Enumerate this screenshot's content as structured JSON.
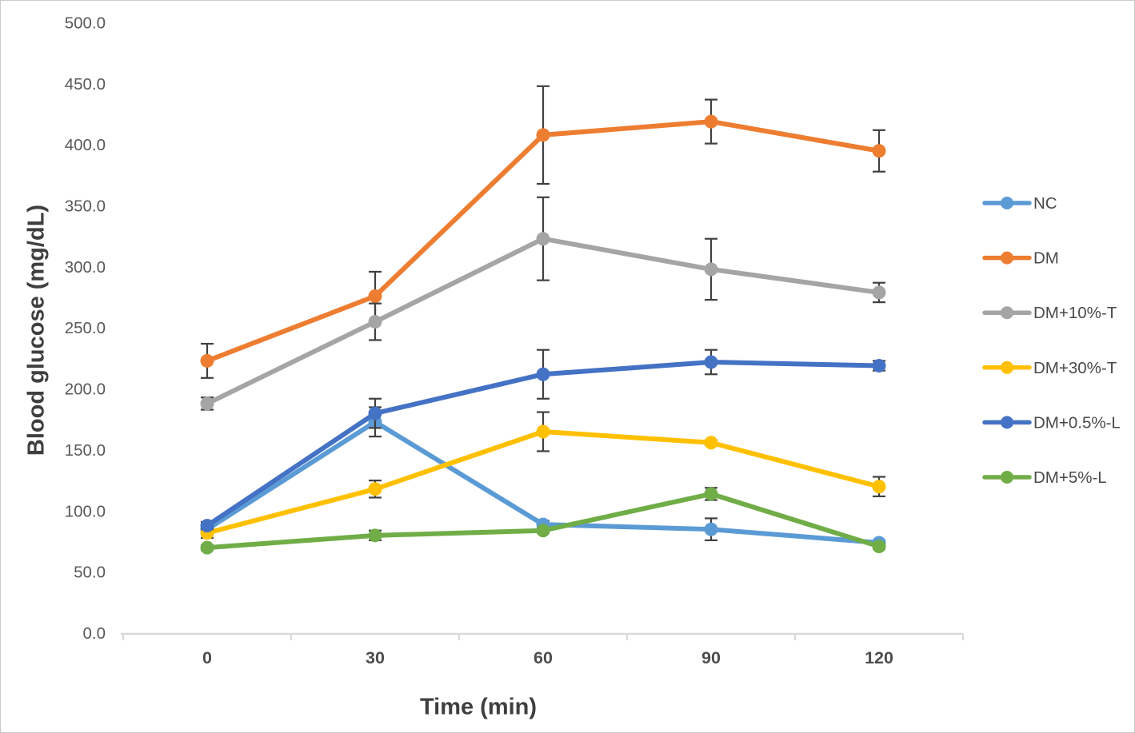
{
  "figure": {
    "background": "#ffffff",
    "border_color": "#cbcbcb"
  },
  "chart_data": {
    "type": "line",
    "title": "",
    "xlabel": "Time (min)",
    "ylabel": "Blood glucose (mg/dL)",
    "x_categories": [
      "0",
      "30",
      "60",
      "90",
      "120"
    ],
    "ylim": [
      0,
      500
    ],
    "ytick_step": 50,
    "ytick_decimals": 1,
    "grid": false,
    "legend_position": "right",
    "styles": {
      "axis_line_color": "#d9d9d9",
      "tick_label_color": "#595959",
      "x_tick_label_color": "#4d4d4d",
      "legend_text_color": "#4a4a4a",
      "error_bar_color": "#404040"
    },
    "series": [
      {
        "name": "NC",
        "color": "#5B9BD5",
        "values": [
          85,
          173,
          89,
          85,
          74
        ],
        "errors": [
          3,
          12,
          3,
          9,
          2
        ]
      },
      {
        "name": "DM",
        "color": "#ED7D31",
        "values": [
          223,
          276,
          408,
          419,
          395
        ],
        "errors": [
          14,
          20,
          40,
          18,
          17
        ]
      },
      {
        "name": "DM+10%-T",
        "color": "#A5A5A5",
        "values": [
          188,
          255,
          323,
          298,
          279
        ],
        "errors": [
          5,
          15,
          34,
          25,
          8
        ]
      },
      {
        "name": "DM+30%-T",
        "color": "#FFC000",
        "values": [
          82,
          118,
          165,
          156,
          120
        ],
        "errors": [
          4,
          7,
          16,
          2,
          8
        ]
      },
      {
        "name": "DM+0.5%-L",
        "color": "#4472C4",
        "values": [
          88,
          180,
          212,
          222,
          219
        ],
        "errors": [
          3,
          12,
          20,
          10,
          4
        ]
      },
      {
        "name": "DM+5%-L",
        "color": "#70AD47",
        "values": [
          70,
          80,
          84,
          114,
          71
        ],
        "errors": [
          2,
          4,
          2,
          5,
          2
        ]
      }
    ]
  }
}
